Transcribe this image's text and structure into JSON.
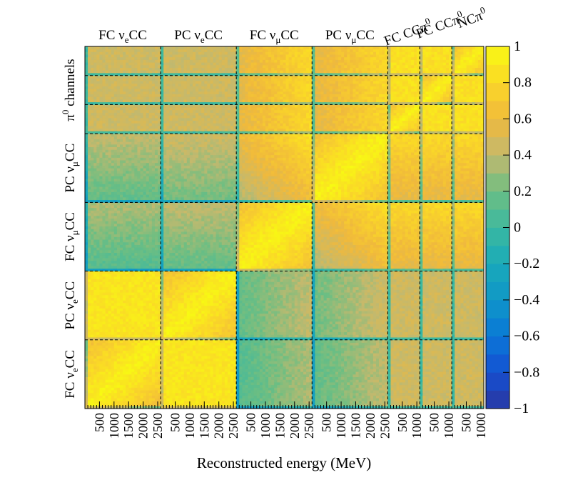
{
  "chart_data": {
    "type": "heatmap",
    "title": "",
    "xlabel": "Reconstructed energy (MeV)",
    "ylabel": "",
    "zlim": [
      -1,
      1
    ],
    "colorbar_ticks": [
      "1",
      "0.8",
      "0.6",
      "0.4",
      "0.2",
      "0",
      "−0.2",
      "−0.4",
      "−0.6",
      "−0.8",
      "−1"
    ],
    "channels": [
      {
        "label": "FC νeCC",
        "x_ticks": [
          "500",
          "1000",
          "1500",
          "2000",
          "2500"
        ]
      },
      {
        "label": "PC νeCC",
        "x_ticks": [
          "500",
          "1000",
          "1500",
          "2000",
          "2500"
        ]
      },
      {
        "label": "FC νμCC",
        "x_ticks": [
          "500",
          "1000",
          "1500",
          "2000",
          "2500"
        ]
      },
      {
        "label": "PC νμCC",
        "x_ticks": [
          "500",
          "1000",
          "1500",
          "2000",
          "2500"
        ]
      },
      {
        "label": "FC CCπ0",
        "x_ticks": [
          "500",
          "1000"
        ]
      },
      {
        "label": "PC CCπ0",
        "x_ticks": [
          "500",
          "1000"
        ]
      },
      {
        "label": "NCπ0",
        "x_ticks": [
          "500",
          "1000"
        ]
      }
    ],
    "y_groups": [
      "FC νeCC",
      "PC νeCC",
      "FC νμCC",
      "PC νμCC",
      "π0 channels"
    ],
    "block_correlation": [
      [
        0.95,
        0.88,
        0.35,
        0.4,
        0.45,
        0.45,
        0.45
      ],
      [
        0.88,
        0.95,
        0.4,
        0.45,
        0.45,
        0.45,
        0.45
      ],
      [
        0.35,
        0.4,
        0.95,
        0.85,
        0.8,
        0.8,
        0.8
      ],
      [
        0.4,
        0.45,
        0.85,
        0.95,
        0.8,
        0.8,
        0.8
      ],
      [
        0.45,
        0.45,
        0.8,
        0.8,
        0.95,
        0.85,
        0.85
      ],
      [
        0.45,
        0.45,
        0.8,
        0.8,
        0.85,
        0.95,
        0.85
      ],
      [
        0.45,
        0.45,
        0.8,
        0.8,
        0.85,
        0.85,
        0.95
      ]
    ]
  },
  "labels": {
    "top": [
      {
        "main": "FC ν",
        "sub": "e",
        "tail": "CC"
      },
      {
        "main": "PC ν",
        "sub": "e",
        "tail": "CC"
      },
      {
        "main": "FC ν",
        "sub": "μ",
        "tail": "CC"
      },
      {
        "main": "PC ν",
        "sub": "μ",
        "tail": "CC"
      }
    ],
    "top_rotated": [
      {
        "main": "FC CCπ",
        "sup": "0"
      },
      {
        "main": "PC CCπ",
        "sup": "0"
      },
      {
        "main": "NCπ",
        "sup": "0"
      }
    ],
    "left": [
      {
        "main": "FC ν",
        "sub": "e",
        "tail": "CC"
      },
      {
        "main": "PC ν",
        "sub": "e",
        "tail": "CC"
      },
      {
        "main": "FC ν",
        "sub": "μ",
        "tail": "CC"
      },
      {
        "main": "PC ν",
        "sub": "μ",
        "tail": "CC"
      },
      {
        "main": "π",
        "sup": "0",
        "tail": " channels"
      }
    ]
  }
}
